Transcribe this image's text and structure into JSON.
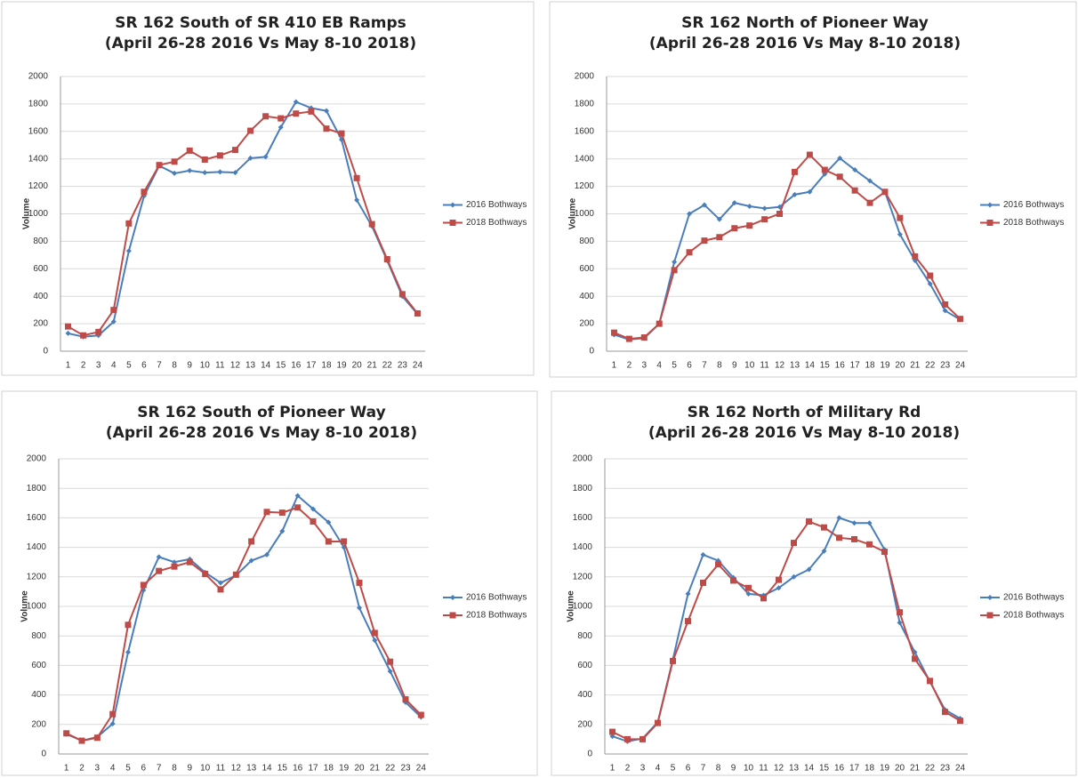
{
  "chart_data": [
    {
      "type": "line",
      "title": "SR 162 South of SR 410 EB Ramps",
      "subtitle": "(April 26-28 2016 Vs May 8-10 2018)",
      "y_label": "Volume",
      "categories": [
        1,
        2,
        3,
        4,
        5,
        6,
        7,
        8,
        9,
        10,
        11,
        12,
        13,
        14,
        15,
        16,
        17,
        18,
        19,
        20,
        21,
        22,
        23,
        24
      ],
      "ylim": [
        0,
        2000
      ],
      "yticks": [
        0,
        200,
        400,
        600,
        800,
        1000,
        1200,
        1400,
        1600,
        1800,
        2000
      ],
      "grid": true,
      "legend": "right",
      "series": [
        {
          "name": "2016 Bothways",
          "color": "#4a7ebb",
          "marker": "diamond",
          "values": [
            130,
            105,
            115,
            215,
            730,
            1130,
            1350,
            1295,
            1315,
            1300,
            1305,
            1300,
            1405,
            1415,
            1630,
            1815,
            1770,
            1750,
            1540,
            1100,
            910,
            660,
            400,
            270
          ]
        },
        {
          "name": "2018 Bothways",
          "color": "#be4b48",
          "marker": "square",
          "values": [
            180,
            115,
            140,
            300,
            930,
            1160,
            1355,
            1380,
            1460,
            1395,
            1425,
            1465,
            1605,
            1710,
            1695,
            1730,
            1745,
            1620,
            1585,
            1260,
            925,
            670,
            415,
            275
          ]
        }
      ]
    },
    {
      "type": "line",
      "title": "SR 162 North of Pioneer Way",
      "subtitle": "(April 26-28 2016 Vs May 8-10 2018)",
      "y_label": "Volume",
      "categories": [
        1,
        2,
        3,
        4,
        5,
        6,
        7,
        8,
        9,
        10,
        11,
        12,
        13,
        14,
        15,
        16,
        17,
        18,
        19,
        20,
        21,
        22,
        23,
        24
      ],
      "ylim": [
        0,
        2000
      ],
      "yticks": [
        0,
        200,
        400,
        600,
        800,
        1000,
        1200,
        1400,
        1600,
        1800,
        2000
      ],
      "grid": true,
      "legend": "right",
      "series": [
        {
          "name": "2016 Bothways",
          "color": "#4a7ebb",
          "marker": "diamond",
          "values": [
            120,
            85,
            95,
            200,
            650,
            1000,
            1065,
            960,
            1080,
            1055,
            1040,
            1050,
            1140,
            1160,
            1290,
            1405,
            1320,
            1240,
            1160,
            850,
            660,
            490,
            295,
            230
          ]
        },
        {
          "name": "2018 Bothways",
          "color": "#be4b48",
          "marker": "square",
          "values": [
            135,
            90,
            100,
            200,
            590,
            720,
            805,
            830,
            895,
            915,
            960,
            1000,
            1305,
            1430,
            1320,
            1270,
            1170,
            1080,
            1160,
            970,
            690,
            550,
            340,
            235
          ]
        }
      ]
    },
    {
      "type": "line",
      "title": "SR 162 South of Pioneer Way",
      "subtitle": "(April 26-28 2016 Vs May 8-10 2018)",
      "y_label": "Volume",
      "categories": [
        1,
        2,
        3,
        4,
        5,
        6,
        7,
        8,
        9,
        10,
        11,
        12,
        13,
        14,
        15,
        16,
        17,
        18,
        19,
        20,
        21,
        22,
        23,
        24
      ],
      "ylim": [
        0,
        2000
      ],
      "yticks": [
        0,
        200,
        400,
        600,
        800,
        1000,
        1200,
        1400,
        1600,
        1800,
        2000
      ],
      "grid": true,
      "legend": "right",
      "series": [
        {
          "name": "2016 Bothways",
          "color": "#4a7ebb",
          "marker": "diamond",
          "values": [
            135,
            90,
            115,
            205,
            690,
            1110,
            1335,
            1300,
            1320,
            1230,
            1160,
            1210,
            1310,
            1350,
            1510,
            1750,
            1660,
            1570,
            1400,
            990,
            770,
            560,
            350,
            250
          ]
        },
        {
          "name": "2018 Bothways",
          "color": "#be4b48",
          "marker": "square",
          "values": [
            140,
            90,
            110,
            270,
            875,
            1145,
            1240,
            1270,
            1300,
            1220,
            1115,
            1215,
            1440,
            1640,
            1635,
            1670,
            1575,
            1440,
            1440,
            1160,
            820,
            625,
            370,
            265
          ]
        }
      ]
    },
    {
      "type": "line",
      "title": "SR 162 North of Military Rd",
      "subtitle": "(April 26-28 2016 Vs May 8-10 2018)",
      "y_label": "Volume",
      "categories": [
        1,
        2,
        3,
        4,
        5,
        6,
        7,
        8,
        9,
        10,
        11,
        12,
        13,
        14,
        15,
        16,
        17,
        18,
        19,
        20,
        21,
        22,
        23,
        24
      ],
      "ylim": [
        0,
        2000
      ],
      "yticks": [
        0,
        200,
        400,
        600,
        800,
        1000,
        1200,
        1400,
        1600,
        1800,
        2000
      ],
      "grid": true,
      "legend": "right",
      "series": [
        {
          "name": "2016 Bothways",
          "color": "#4a7ebb",
          "marker": "diamond",
          "values": [
            120,
            85,
            105,
            215,
            640,
            1085,
            1350,
            1310,
            1195,
            1085,
            1075,
            1125,
            1200,
            1250,
            1375,
            1600,
            1565,
            1565,
            1385,
            890,
            690,
            490,
            300,
            240
          ]
        },
        {
          "name": "2018 Bothways",
          "color": "#be4b48",
          "marker": "square",
          "values": [
            150,
            100,
            100,
            210,
            630,
            900,
            1160,
            1285,
            1175,
            1125,
            1055,
            1180,
            1430,
            1575,
            1535,
            1465,
            1455,
            1420,
            1370,
            960,
            645,
            495,
            285,
            225
          ]
        }
      ]
    }
  ]
}
